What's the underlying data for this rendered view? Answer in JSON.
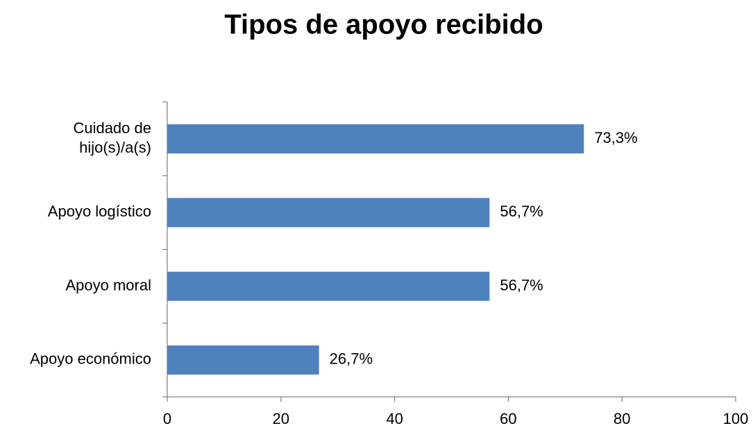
{
  "chart_data": {
    "type": "bar",
    "orientation": "horizontal",
    "title": "Tipos de apoyo recibido",
    "categories": [
      "Cuidado de hijo(s)/a(s)",
      "Apoyo logístico",
      "Apoyo moral",
      "Apoyo económico"
    ],
    "values": [
      73.3,
      56.7,
      56.7,
      26.7
    ],
    "value_labels": [
      "73,3%",
      "56,7%",
      "56,7%",
      "26,7%"
    ],
    "color": "#4f81bd",
    "xlim": [
      0,
      100
    ],
    "xticks": [
      0,
      20,
      40,
      60,
      80,
      100
    ]
  }
}
